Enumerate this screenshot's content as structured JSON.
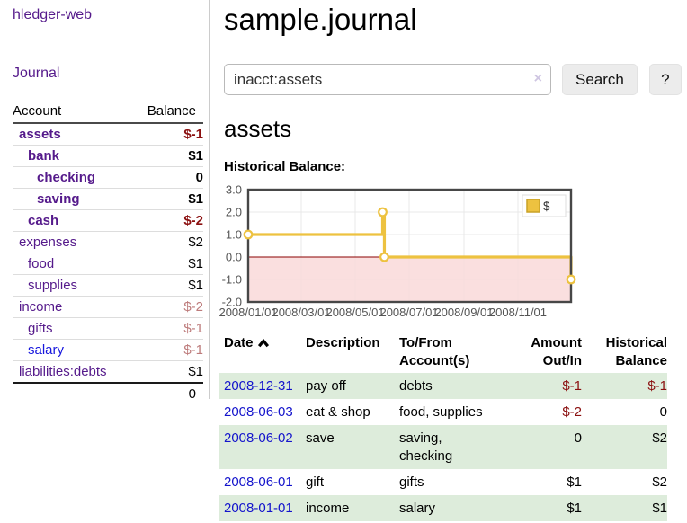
{
  "app": {
    "title": "hledger-web"
  },
  "sidebar": {
    "journal_label": "Journal",
    "accounts": {
      "header_account": "Account",
      "header_balance": "Balance",
      "rows": [
        {
          "name": "assets",
          "balance": "$-1",
          "indent": 0,
          "emphasis": true,
          "balance_style": "neg-strong",
          "link_style": "purple"
        },
        {
          "name": "bank",
          "balance": "$1",
          "indent": 1,
          "emphasis": true,
          "balance_style": "pos",
          "link_style": "purple"
        },
        {
          "name": "checking",
          "balance": "0",
          "indent": 2,
          "emphasis": true,
          "balance_style": "pos",
          "link_style": "purple"
        },
        {
          "name": "saving",
          "balance": "$1",
          "indent": 2,
          "emphasis": true,
          "balance_style": "pos",
          "link_style": "purple"
        },
        {
          "name": "cash",
          "balance": "$-2",
          "indent": 1,
          "emphasis": true,
          "balance_style": "neg-strong",
          "link_style": "purple"
        },
        {
          "name": "expenses",
          "balance": "$2",
          "indent": 0,
          "emphasis": false,
          "balance_style": "pos",
          "link_style": "purple"
        },
        {
          "name": "food",
          "balance": "$1",
          "indent": 1,
          "emphasis": false,
          "balance_style": "pos",
          "link_style": "purple"
        },
        {
          "name": "supplies",
          "balance": "$1",
          "indent": 1,
          "emphasis": false,
          "balance_style": "pos",
          "link_style": "purple"
        },
        {
          "name": "income",
          "balance": "$-2",
          "indent": 0,
          "emphasis": false,
          "balance_style": "neg-dim",
          "link_style": "purple"
        },
        {
          "name": "gifts",
          "balance": "$-1",
          "indent": 1,
          "emphasis": false,
          "balance_style": "neg-dim",
          "link_style": "purple"
        },
        {
          "name": "salary",
          "balance": "$-1",
          "indent": 1,
          "emphasis": false,
          "balance_style": "neg-dim",
          "link_style": "blue"
        },
        {
          "name": "liabilities:debts",
          "balance": "$1",
          "indent": 0,
          "emphasis": false,
          "balance_style": "pos",
          "link_style": "purple"
        }
      ],
      "total": "0"
    }
  },
  "main": {
    "title": "sample.journal",
    "search": {
      "value": "inacct:assets",
      "clear_icon": "×",
      "search_button": "Search",
      "help_button": "?"
    },
    "account_heading": "assets",
    "section_heading": "Historical Balance:"
  },
  "chart_data": {
    "type": "line",
    "title": "Historical Balance:",
    "step": true,
    "x_range": [
      "2008-01-01",
      "2008-12-31"
    ],
    "ylim": [
      -2,
      3
    ],
    "yticks": [
      "3.0",
      "2.0",
      "1.0",
      "0.0",
      "-1.0",
      "-2.0"
    ],
    "xticks": [
      {
        "label": "2008/01/01",
        "date": "2008-01-01"
      },
      {
        "label": "2008/03/01",
        "date": "2008-03-01"
      },
      {
        "label": "2008/05/01",
        "date": "2008-05-01"
      },
      {
        "label": "2008/07/01",
        "date": "2008-07-01"
      },
      {
        "label": "2008/09/01",
        "date": "2008-09-01"
      },
      {
        "label": "2008/11/01",
        "date": "2008-11-01"
      }
    ],
    "series": [
      {
        "name": "$",
        "color": "#edc240",
        "points": [
          {
            "date": "2008-01-01",
            "value": 1
          },
          {
            "date": "2008-06-01",
            "value": 2
          },
          {
            "date": "2008-06-03",
            "value": 0
          },
          {
            "date": "2008-12-31",
            "value": -1
          }
        ]
      }
    ],
    "legend": {
      "label": "$",
      "position": "top-right"
    },
    "grid": true,
    "colors": {
      "line": "#edc240",
      "marker_fill": "#ffffff",
      "negative_region": "#f9d9d9",
      "zero_line": "#8b0000",
      "gridline": "#e8e8e8",
      "border": "#474747",
      "tick_text": "#545454"
    }
  },
  "register": {
    "headers": {
      "date": "Date",
      "description": "Description",
      "accounts": "To/From Account(s)",
      "amount": "Amount Out/In",
      "balance": "Historical Balance"
    },
    "sort_icon": "chevron-up",
    "rows": [
      {
        "date": "2008-12-31",
        "description": "pay off",
        "accounts": "debts",
        "amount": "$-1",
        "balance": "$-1"
      },
      {
        "date": "2008-06-03",
        "description": "eat & shop",
        "accounts": "food, supplies",
        "amount": "$-2",
        "balance": "0"
      },
      {
        "date": "2008-06-02",
        "description": "save",
        "accounts": "saving, checking",
        "amount": "0",
        "balance": "$2"
      },
      {
        "date": "2008-06-01",
        "description": "gift",
        "accounts": "gifts",
        "amount": "$1",
        "balance": "$2"
      },
      {
        "date": "2008-01-01",
        "description": "income",
        "accounts": "salary",
        "amount": "$1",
        "balance": "$1"
      }
    ]
  },
  "colors": {
    "link_purple": "#551a8b",
    "link_blue": "#1414cc",
    "negative_strong": "#8b1010",
    "negative_dim": "#bd7b7b",
    "row_stripe_green": "#ddecdb",
    "button_bg": "#ececec"
  }
}
